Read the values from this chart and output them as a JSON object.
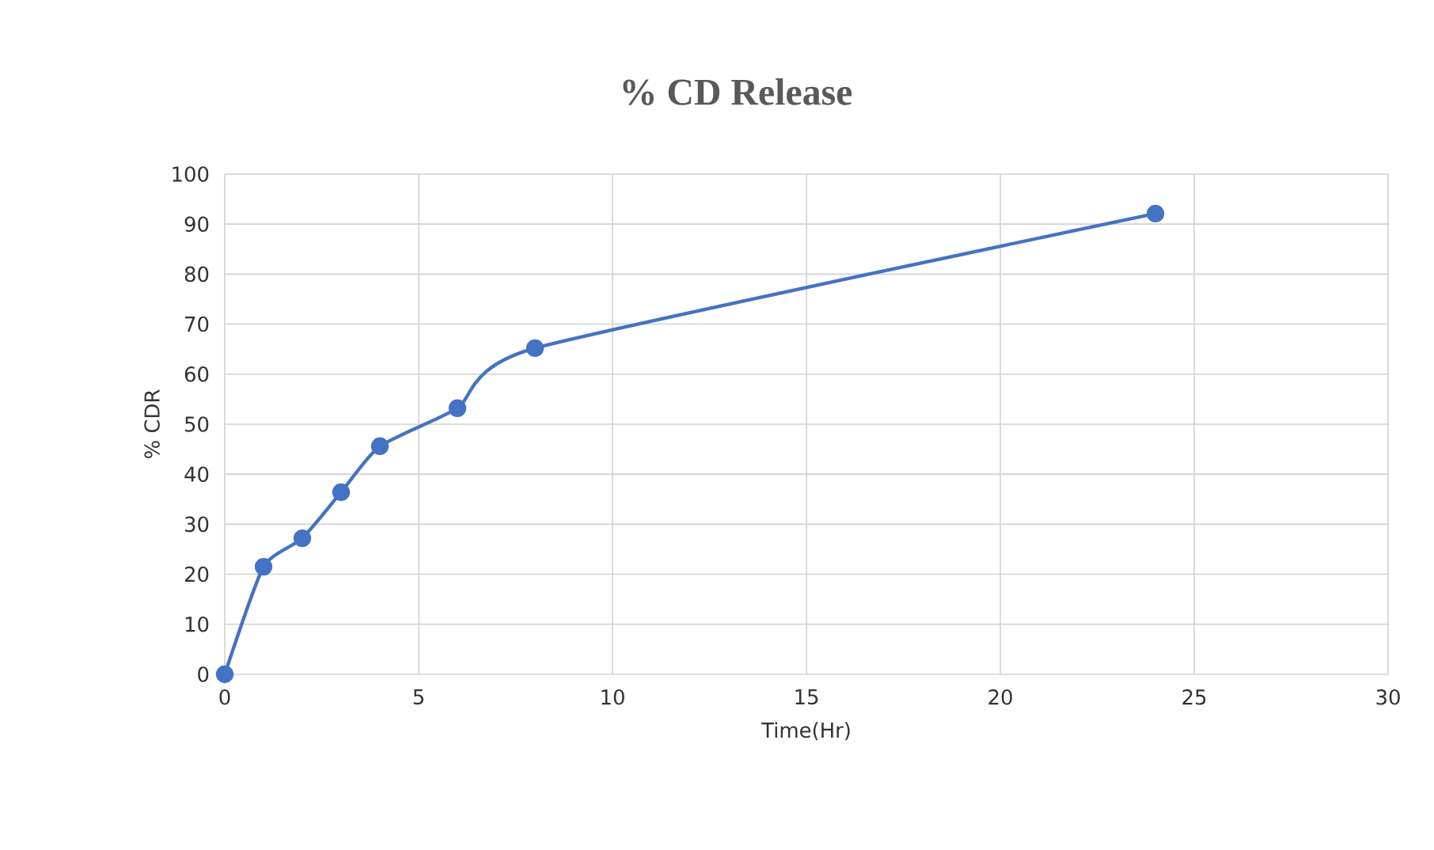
{
  "chart_data": {
    "type": "line",
    "title": "% CD Release",
    "xlabel": "Time(Hr)",
    "ylabel": "% CDR",
    "x": [
      0,
      1,
      2,
      3,
      4,
      6,
      8,
      24
    ],
    "series": [
      {
        "color": "#4472c4",
        "values": [
          0,
          21.5,
          27.2,
          36.4,
          45.6,
          53.2,
          65.2,
          92.1
        ]
      }
    ],
    "xlim": [
      0,
      30
    ],
    "xticks": [
      0,
      5,
      10,
      15,
      20,
      25,
      30
    ],
    "ylim": [
      0,
      100
    ],
    "yticks": [
      0,
      10,
      20,
      30,
      40,
      50,
      60,
      70,
      80,
      90,
      100
    ],
    "grid": true,
    "marker": "circle",
    "line_style": "solid"
  }
}
